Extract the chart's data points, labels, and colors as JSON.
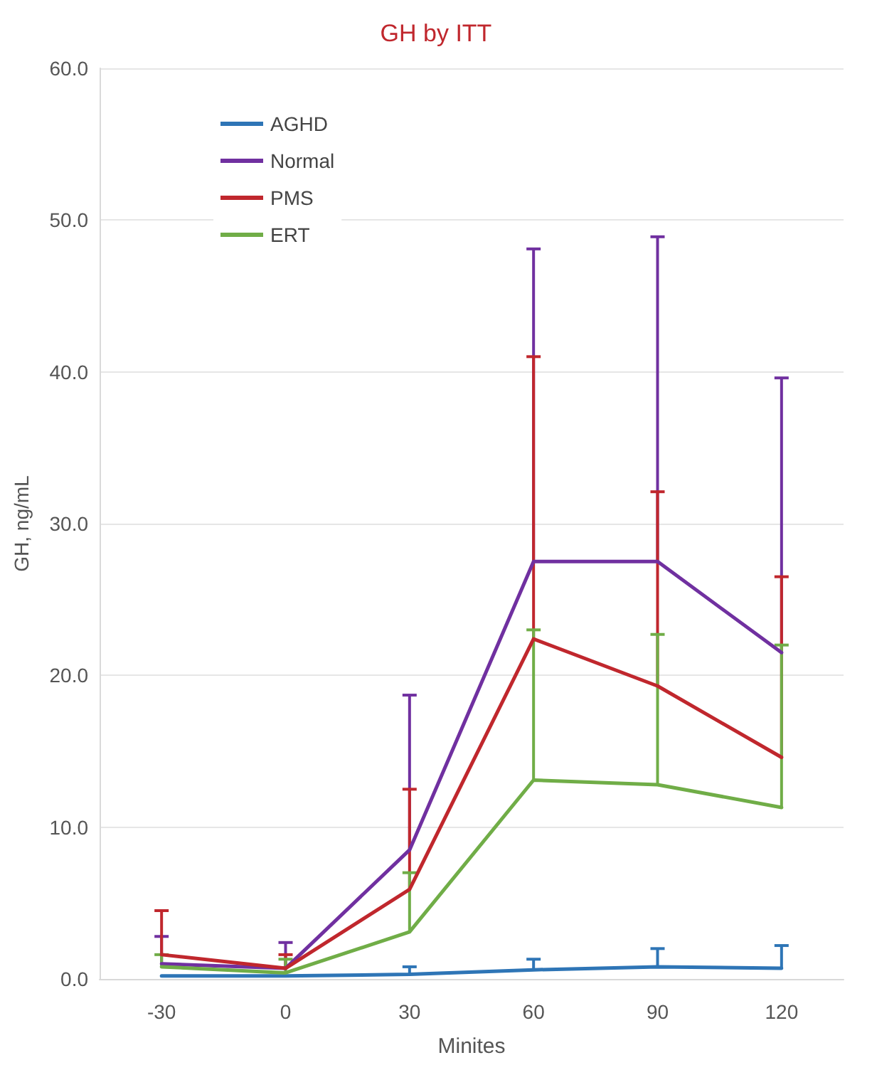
{
  "chart_data": {
    "type": "line",
    "title": "GH by ITT",
    "xlabel": "Minites",
    "ylabel": "GH, ng/mL",
    "categories": [
      "-30",
      "0",
      "30",
      "60",
      "90",
      "120"
    ],
    "series": [
      {
        "name": "AGHD",
        "color": "#2e75b6",
        "values": [
          0.2,
          0.2,
          0.3,
          0.6,
          0.8,
          0.7
        ],
        "errors": [
          null,
          null,
          [
            0.3,
            0.8
          ],
          [
            0.6,
            1.3
          ],
          [
            0.8,
            2.0
          ],
          [
            0.7,
            2.2
          ]
        ]
      },
      {
        "name": "Normal",
        "color": "#7030a0",
        "values": [
          1.0,
          0.7,
          8.5,
          27.5,
          27.5,
          21.5
        ],
        "errors": [
          [
            1.0,
            2.8
          ],
          [
            0.7,
            2.4
          ],
          [
            8.5,
            18.7
          ],
          [
            27.5,
            48.1
          ],
          [
            27.5,
            48.9
          ],
          [
            21.5,
            39.6
          ]
        ]
      },
      {
        "name": "PMS",
        "color": "#c0272d",
        "values": [
          1.6,
          0.7,
          5.9,
          22.4,
          19.3,
          14.6
        ],
        "errors": [
          [
            1.6,
            4.5
          ],
          [
            0.7,
            1.6
          ],
          [
            5.9,
            12.5
          ],
          [
            22.4,
            41.0
          ],
          [
            19.3,
            32.1
          ],
          [
            14.6,
            26.5
          ]
        ]
      },
      {
        "name": "ERT",
        "color": "#70ad47",
        "values": [
          0.8,
          0.4,
          3.1,
          13.1,
          12.8,
          11.3
        ],
        "errors": [
          [
            0.8,
            1.6
          ],
          [
            0.4,
            1.3
          ],
          [
            3.1,
            7.0
          ],
          [
            13.1,
            23.0
          ],
          [
            12.8,
            22.7
          ],
          [
            11.3,
            22.0
          ]
        ]
      }
    ],
    "ylim": [
      0,
      60
    ],
    "yticks": [
      {
        "value": 0,
        "label": "0.0"
      },
      {
        "value": 10,
        "label": "10.0"
      },
      {
        "value": 20,
        "label": "20.0"
      },
      {
        "value": 30,
        "label": "30.0"
      },
      {
        "value": 40,
        "label": "40.0"
      },
      {
        "value": 50,
        "label": "50.0"
      },
      {
        "value": 60,
        "label": "60.0"
      }
    ],
    "grid": "y",
    "legend": "top left",
    "marker": "none",
    "line_style": "solid"
  }
}
